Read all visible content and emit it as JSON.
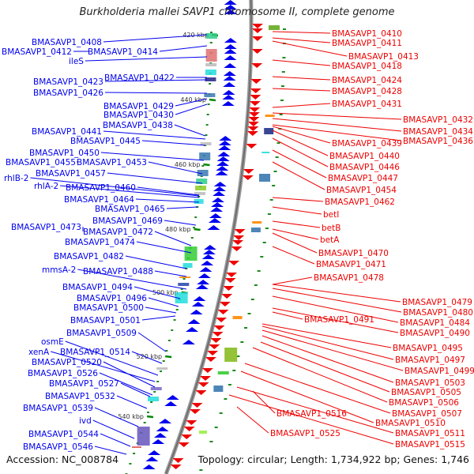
{
  "title": "Burkholderia mallei SAVP1 chromosome II, complete genome",
  "footer": {
    "accession": "Accession: NC_008784",
    "topology": "Topology: circular; Length: 1,734,922 bp; Genes: 1,746"
  },
  "colors": {
    "forward": "#0000ee",
    "reverse": "#ee0000",
    "backbone": "#888888",
    "tick": "#008800"
  },
  "ticks": [
    "420 kbp",
    "440 kbp",
    "460 kbp",
    "480 kbp",
    "500 kbp",
    "520 kbp",
    "540 kbp"
  ],
  "left_labels": [
    "BMASAVP1_0408",
    "BMASAVP1_0412",
    "BMASAVP1_0414",
    "ileS",
    "BMASAVP1_0422",
    "BMASAVP1_0423",
    "BMASAVP1_0426",
    "BMASAVP1_0429",
    "BMASAVP1_0430",
    "BMASAVP1_0438",
    "BMASAVP1_0441",
    "BMASAVP1_0445",
    "BMASAVP1_0450",
    "BMASAVP1_0455",
    "BMASAVP1_0453",
    "BMASAVP1_0457",
    "rhlB-2",
    "rhlA-2",
    "BMASAVP1_0460",
    "BMASAVP1_0464",
    "BMASAVP1_0465",
    "BMASAVP1_0469",
    "BMASAVP1_0473",
    "BMASAVP1_0472",
    "BMASAVP1_0474",
    "BMASAVP1_0482",
    "mmsA-2",
    "BMASAVP1_0488",
    "BMASAVP1_0494",
    "BMASAVP1_0496",
    "BMASAVP1_0500",
    "BMASAVP1_0501",
    "BMASAVP1_0509",
    "osmE",
    "xenA",
    "BMASAVP1_0514",
    "BMASAVP1_0520",
    "BMASAVP1_0526",
    "BMASAVP1_0527",
    "BMASAVP1_0532",
    "BMASAVP1_0539",
    "ivd",
    "BMASAVP1_0544",
    "BMASAVP1_0546"
  ],
  "right_labels": [
    "BMASAVP1_0410",
    "BMASAVP1_0411",
    "BMASAVP1_0413",
    "BMASAVP1_0418",
    "BMASAVP1_0424",
    "BMASAVP1_0428",
    "BMASAVP1_0431",
    "BMASAVP1_0432",
    "BMASAVP1_0434",
    "BMASAVP1_0436",
    "BMASAVP1_0439",
    "BMASAVP1_0440",
    "BMASAVP1_0446",
    "BMASAVP1_0447",
    "BMASAVP1_0454",
    "BMASAVP1_0462",
    "betI",
    "betB",
    "betA",
    "BMASAVP1_0470",
    "BMASAVP1_0471",
    "BMASAVP1_0478",
    "BMASAVP1_0479",
    "BMASAVP1_0480",
    "BMASAVP1_0484",
    "BMASAVP1_0490",
    "BMASAVP1_0491",
    "BMASAVP1_0495",
    "BMASAVP1_0497",
    "BMASAVP1_0499",
    "BMASAVP1_0503",
    "BMASAVP1_0505",
    "BMASAVP1_0506",
    "BMASAVP1_0507",
    "BMASAVP1_0516",
    "BMASAVP1_0510",
    "BMASAVP1_0511",
    "BMASAVP1_0525",
    "BMASAVP1_0515"
  ]
}
